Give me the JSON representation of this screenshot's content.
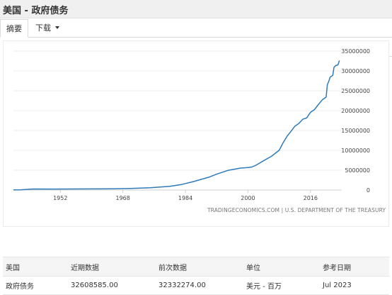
{
  "header": {
    "title": "美国 - 政府债务"
  },
  "tabs": [
    {
      "label": "摘要"
    },
    {
      "label": "下载"
    }
  ],
  "source_label": "TRADINGECONOMICS.COM | U.S. DEPARTMENT OF THE TREASURY",
  "chart_data": {
    "type": "line",
    "x_ticks": [
      "1952",
      "1968",
      "1984",
      "2000",
      "2016"
    ],
    "y_ticks": [
      "0",
      "5000000",
      "10000000",
      "15000000",
      "20000000",
      "25000000",
      "30000000",
      "35000000"
    ],
    "xlim": [
      1940,
      2024
    ],
    "ylim": [
      0,
      35000000
    ],
    "grid": true,
    "line_color": "#2f7bb9",
    "series": [
      {
        "points": [
          [
            1940,
            50000
          ],
          [
            1942,
            80000
          ],
          [
            1945,
            260000
          ],
          [
            1950,
            257000
          ],
          [
            1955,
            274000
          ],
          [
            1960,
            290000
          ],
          [
            1965,
            322000
          ],
          [
            1970,
            389000
          ],
          [
            1975,
            576000
          ],
          [
            1980,
            930000
          ],
          [
            1983,
            1400000
          ],
          [
            1986,
            2120000
          ],
          [
            1990,
            3233000
          ],
          [
            1992,
            4000000
          ],
          [
            1995,
            4974000
          ],
          [
            1998,
            5526000
          ],
          [
            2000,
            5674000
          ],
          [
            2001,
            5807000
          ],
          [
            2002,
            6228000
          ],
          [
            2004,
            7379000
          ],
          [
            2006,
            8507000
          ],
          [
            2008,
            10025000
          ],
          [
            2009,
            11910000
          ],
          [
            2010,
            13562000
          ],
          [
            2011,
            14790000
          ],
          [
            2012,
            16066000
          ],
          [
            2013,
            16738000
          ],
          [
            2014,
            17824000
          ],
          [
            2015,
            18151000
          ],
          [
            2016,
            19573000
          ],
          [
            2017,
            20245000
          ],
          [
            2018,
            21516000
          ],
          [
            2019,
            22719000
          ],
          [
            2020.0,
            23400000
          ],
          [
            2020.3,
            26500000
          ],
          [
            2020.8,
            27700000
          ],
          [
            2021,
            28400000
          ],
          [
            2021.7,
            28900000
          ],
          [
            2022,
            30900000
          ],
          [
            2022.5,
            31400000
          ],
          [
            2023.0,
            31460000
          ],
          [
            2023.4,
            32600000
          ]
        ]
      }
    ]
  },
  "table": {
    "headers": [
      "美国",
      "近期数据",
      "前次数据",
      "单位",
      "参考日期"
    ],
    "rows": [
      [
        "政府债务",
        "32608585.00",
        "32332274.00",
        "美元 - 百万",
        "Jul 2023"
      ]
    ]
  }
}
